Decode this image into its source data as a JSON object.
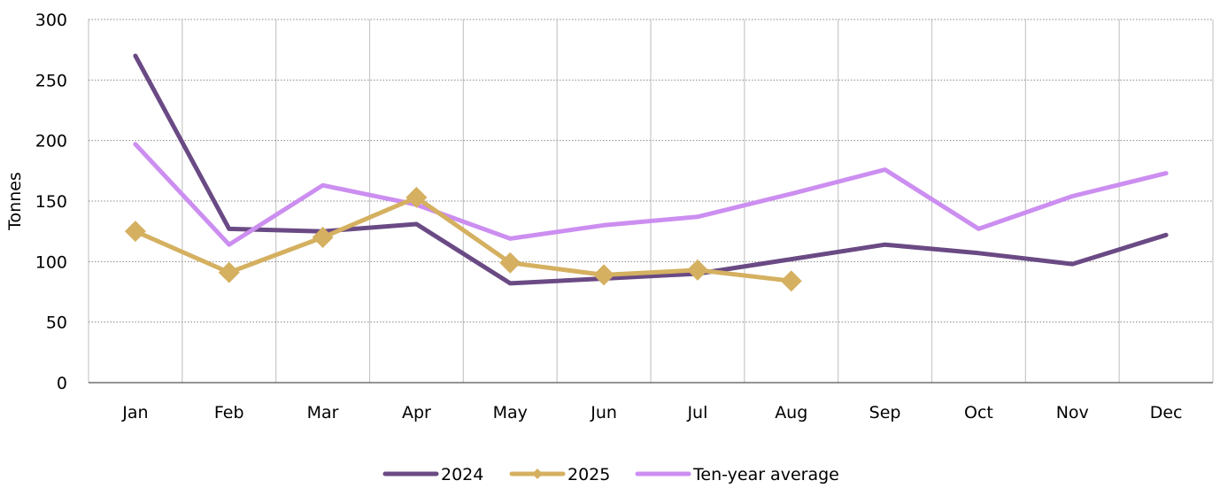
{
  "chart_data": {
    "type": "line",
    "categories": [
      "Jan",
      "Feb",
      "Mar",
      "Apr",
      "May",
      "Jun",
      "Jul",
      "Aug",
      "Sep",
      "Oct",
      "Nov",
      "Dec"
    ],
    "ylabel": "Tonnes",
    "xlabel": "",
    "title": "",
    "ylim": [
      0,
      300
    ],
    "yticks": [
      0,
      50,
      100,
      150,
      200,
      250,
      300
    ],
    "grid": {
      "horizontal": "dotted",
      "vertical": "solid"
    },
    "legend_position": "bottom-center",
    "series": [
      {
        "name": "2024",
        "color": "#6a4a84",
        "marker": "none",
        "values": [
          270,
          127,
          125,
          131,
          82,
          86,
          90,
          102,
          114,
          107,
          98,
          122
        ]
      },
      {
        "name": "2025",
        "color": "#d4b060",
        "marker": "diamond",
        "values": [
          125,
          91,
          120,
          153,
          99,
          89,
          93,
          84,
          null,
          null,
          null,
          null
        ]
      },
      {
        "name": "Ten-year average",
        "color": "#cc8ef0",
        "marker": "none",
        "values": [
          197,
          114,
          163,
          147,
          119,
          130,
          137,
          156,
          176,
          127,
          154,
          173
        ]
      }
    ]
  }
}
